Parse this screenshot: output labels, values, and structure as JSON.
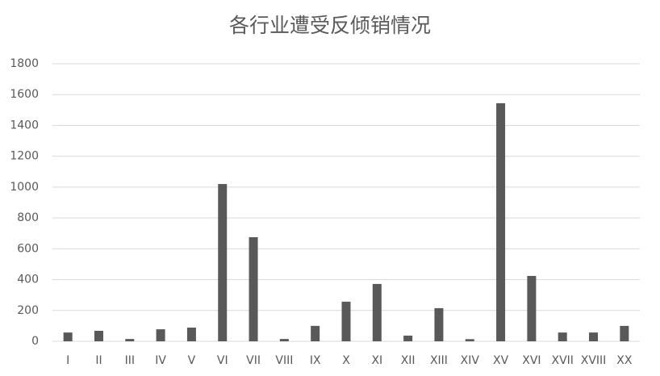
{
  "chart_data": {
    "type": "bar",
    "title": "各行业遭受反倾销情况",
    "categories": [
      "I",
      "II",
      "III",
      "IV",
      "V",
      "VI",
      "VII",
      "VIII",
      "IX",
      "X",
      "XI",
      "XII",
      "XIII",
      "XIV",
      "XV",
      "XVI",
      "XVII",
      "XVIII",
      "XX"
    ],
    "values": [
      57,
      68,
      15,
      78,
      89,
      1020,
      675,
      15,
      100,
      257,
      372,
      37,
      215,
      14,
      1544,
      424,
      57,
      57,
      100
    ],
    "color": "#595959",
    "ylim": [
      0,
      1800
    ],
    "yticks": [
      0,
      200,
      400,
      600,
      800,
      1000,
      1200,
      1400,
      1600,
      1800
    ],
    "grid": true
  }
}
